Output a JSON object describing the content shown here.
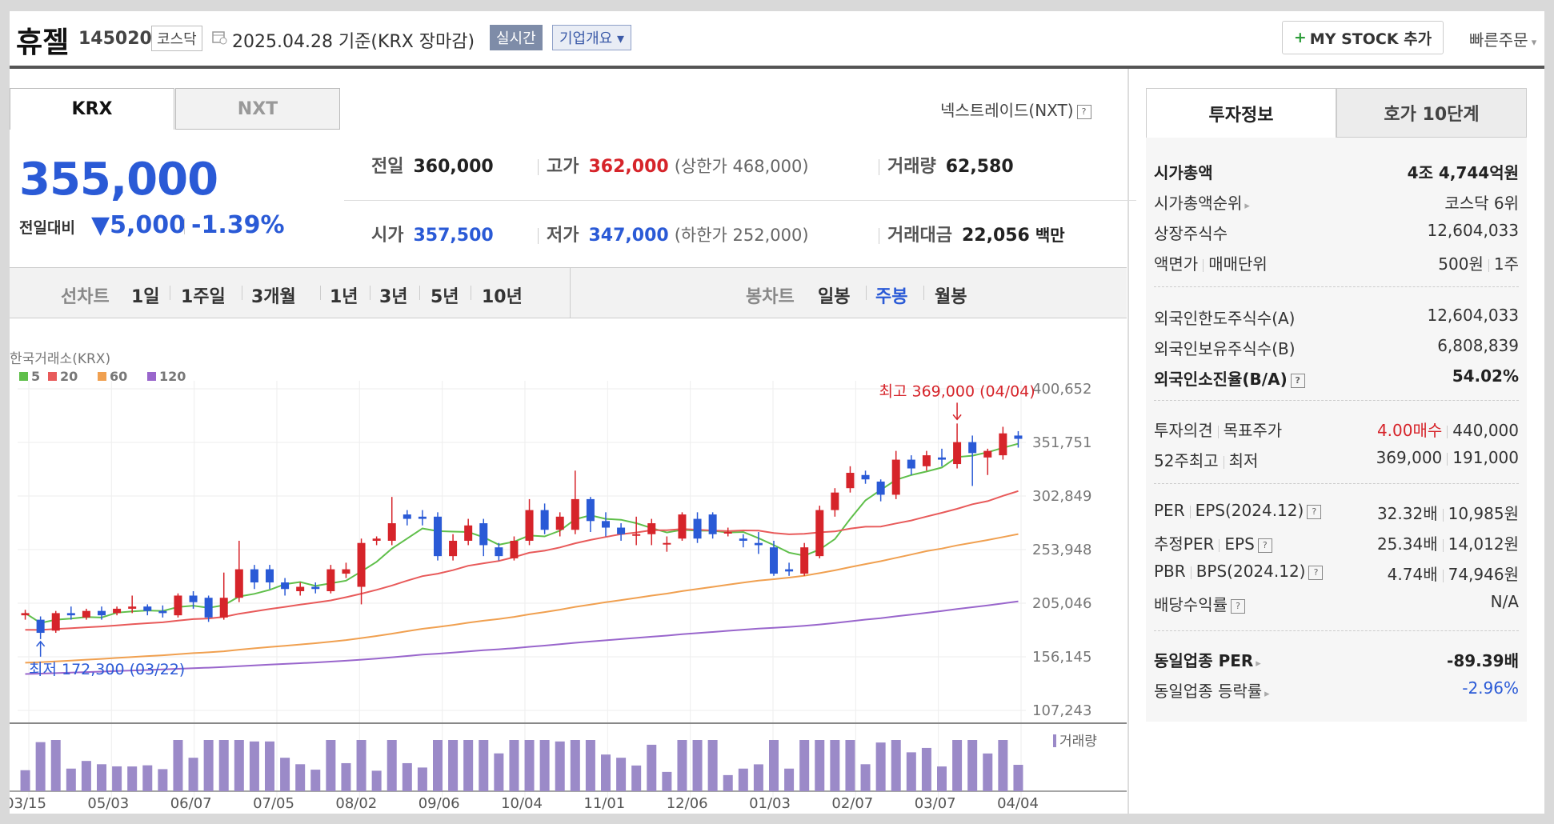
{
  "header": {
    "name": "휴젤",
    "code": "145020",
    "market": "코스닥",
    "date": "2025.04.28  기준(KRX 장마감)",
    "realtime_label": "실시간",
    "company_label": "기업개요 ▾",
    "mystock_label": "MY STOCK 추가",
    "quick_order_label": "빠른주문"
  },
  "tabs": {
    "krx": "KRX",
    "nxt": "NXT",
    "nxt_link": "넥스트레이드(NXT)"
  },
  "quote": {
    "price": "355,000",
    "change_label": "전일대비",
    "change_value": "▼5,000",
    "change_pct": "-1.39%"
  },
  "stats": {
    "prev_label": "전일",
    "prev": "360,000",
    "high_label": "고가",
    "high": "362,000",
    "upper_limit": "(상한가 468,000)",
    "volume_label": "거래량",
    "volume": "62,580",
    "open_label": "시가",
    "open": "357,500",
    "low_label": "저가",
    "low": "347,000",
    "lower_limit": "(하한가 252,000)",
    "amount_label": "거래대금",
    "amount": "22,056",
    "amount_unit": "백만"
  },
  "toolbar": {
    "line_chart_label": "선차트",
    "periods": [
      "1일",
      "1주일",
      "3개월",
      "1년",
      "3년",
      "5년",
      "10년"
    ],
    "candle_label": "봉차트",
    "candle_periods": [
      "일봉",
      "주봉",
      "월봉"
    ],
    "selected_candle": "주봉"
  },
  "colors": {
    "up": "#d6242a",
    "down": "#2a5ad6",
    "ma5": "#5fbf4a",
    "ma20": "#e85a5a",
    "ma60": "#f0a050",
    "ma120": "#9966cc",
    "volume": "#9b8ac8"
  },
  "chart_data": {
    "type": "candlestick",
    "source_label": "한국거래소(KRX)",
    "legend": [
      "5",
      "20",
      "60",
      "120"
    ],
    "y_ticks": [
      "400,652",
      "351,751",
      "302,849",
      "253,948",
      "205,046",
      "156,145",
      "107,243"
    ],
    "ylim": [
      107243,
      400652
    ],
    "x_ticks": [
      "03/15",
      "05/03",
      "06/07",
      "07/05",
      "08/02",
      "09/06",
      "10/04",
      "11/01",
      "12/06",
      "01/03",
      "02/07",
      "03/07",
      "04/04"
    ],
    "high_annotation": "최고 369,000 (04/04)",
    "low_annotation": "최저 172,300 (03/22)",
    "volume_label": "거래량",
    "candles": [
      [
        194000,
        196000,
        190000,
        199000
      ],
      [
        190000,
        178000,
        172300,
        193000
      ],
      [
        180000,
        196000,
        178000,
        198000
      ],
      [
        196000,
        194000,
        190000,
        202000
      ],
      [
        192000,
        198000,
        190000,
        200000
      ],
      [
        198000,
        194000,
        190000,
        202000
      ],
      [
        196000,
        200000,
        194000,
        202000
      ],
      [
        200000,
        202000,
        196000,
        212000
      ],
      [
        202000,
        198000,
        194000,
        204000
      ],
      [
        198000,
        196000,
        192000,
        203000
      ],
      [
        194000,
        212000,
        192000,
        214000
      ],
      [
        212000,
        206000,
        200000,
        216000
      ],
      [
        210000,
        192000,
        188000,
        212000
      ],
      [
        192000,
        210000,
        190000,
        233000
      ],
      [
        210000,
        236000,
        206000,
        262000
      ],
      [
        236000,
        224000,
        218000,
        240000
      ],
      [
        236000,
        224000,
        218000,
        240000
      ],
      [
        224000,
        218000,
        212000,
        228000
      ],
      [
        216000,
        220000,
        212000,
        224000
      ],
      [
        220000,
        218000,
        214000,
        224000
      ],
      [
        216000,
        236000,
        214000,
        240000
      ],
      [
        232000,
        236000,
        228000,
        242000
      ],
      [
        220000,
        260000,
        204000,
        264000
      ],
      [
        262000,
        264000,
        258000,
        266000
      ],
      [
        262000,
        278000,
        258000,
        302000
      ],
      [
        286000,
        282000,
        276000,
        290000
      ],
      [
        284000,
        282000,
        276000,
        290000
      ],
      [
        284000,
        248000,
        244000,
        288000
      ],
      [
        248000,
        262000,
        244000,
        268000
      ],
      [
        262000,
        276000,
        258000,
        282000
      ],
      [
        278000,
        258000,
        248000,
        282000
      ],
      [
        256000,
        248000,
        244000,
        260000
      ],
      [
        246000,
        262000,
        244000,
        266000
      ],
      [
        262000,
        290000,
        258000,
        300000
      ],
      [
        290000,
        272000,
        268000,
        296000
      ],
      [
        272000,
        284000,
        266000,
        288000
      ],
      [
        272000,
        300000,
        268000,
        326000
      ],
      [
        300000,
        280000,
        270000,
        302000
      ],
      [
        280000,
        274000,
        266000,
        288000
      ],
      [
        274000,
        268000,
        262000,
        278000
      ],
      [
        268000,
        268000,
        258000,
        284000
      ],
      [
        268000,
        278000,
        258000,
        282000
      ],
      [
        260000,
        260000,
        252000,
        266000
      ],
      [
        264000,
        286000,
        262000,
        288000
      ],
      [
        282000,
        264000,
        260000,
        288000
      ],
      [
        286000,
        268000,
        264000,
        288000
      ],
      [
        270000,
        270000,
        266000,
        274000
      ],
      [
        264000,
        262000,
        256000,
        268000
      ],
      [
        260000,
        258000,
        250000,
        270000
      ],
      [
        256000,
        232000,
        230000,
        262000
      ],
      [
        236000,
        234000,
        230000,
        242000
      ],
      [
        232000,
        256000,
        230000,
        260000
      ],
      [
        248000,
        290000,
        246000,
        294000
      ],
      [
        290000,
        306000,
        284000,
        310000
      ],
      [
        310000,
        324000,
        306000,
        330000
      ],
      [
        322000,
        318000,
        314000,
        326000
      ],
      [
        316000,
        304000,
        298000,
        318000
      ],
      [
        304000,
        336000,
        300000,
        344000
      ],
      [
        336000,
        328000,
        322000,
        340000
      ],
      [
        330000,
        340000,
        326000,
        344000
      ],
      [
        338000,
        336000,
        330000,
        346000
      ],
      [
        332000,
        352000,
        328000,
        369000
      ],
      [
        352000,
        342000,
        312000,
        358000
      ],
      [
        338000,
        344000,
        322000,
        346000
      ],
      [
        340000,
        360000,
        336000,
        366000
      ],
      [
        358000,
        355000,
        347000,
        362000
      ]
    ]
  },
  "info": {
    "tab_invest": "투자정보",
    "tab_order": "호가 10단계",
    "market_cap_label": "시가총액",
    "market_cap": "4조 4,744억원",
    "cap_rank_label": "시가총액순위",
    "cap_rank": "코스닥 6위",
    "shares_label": "상장주식수",
    "shares": "12,604,033",
    "par_label": "액면가",
    "unit_label": "매매단위",
    "par": "500원",
    "unit": "1주",
    "foreign_limit_label": "외국인한도주식수(A)",
    "foreign_limit": "12,604,033",
    "foreign_hold_label": "외국인보유주식수(B)",
    "foreign_hold": "6,808,839",
    "foreign_ratio_label": "외국인소진율(B/A)",
    "foreign_ratio": "54.02%",
    "opinion_label": "투자의견",
    "target_label": "목표주가",
    "opinion": "4.00매수",
    "target": "440,000",
    "high52_label": "52주최고",
    "low52_label": "최저",
    "high52": "369,000",
    "low52": "191,000",
    "per_label": "PER",
    "eps_label": "EPS(2024.12)",
    "per": "32.32배",
    "eps": "10,985원",
    "est_per_label": "추정PER",
    "est_eps_label": "EPS",
    "est_per": "25.34배",
    "est_eps": "14,012원",
    "pbr_label": "PBR",
    "bps_label": "BPS(2024.12)",
    "pbr": "4.74배",
    "bps": "74,946원",
    "div_label": "배당수익률",
    "div": "N/A",
    "sector_per_label": "동일업종 PER",
    "sector_per": "-89.39배",
    "sector_chg_label": "동일업종 등락률",
    "sector_chg": "-2.96%"
  }
}
